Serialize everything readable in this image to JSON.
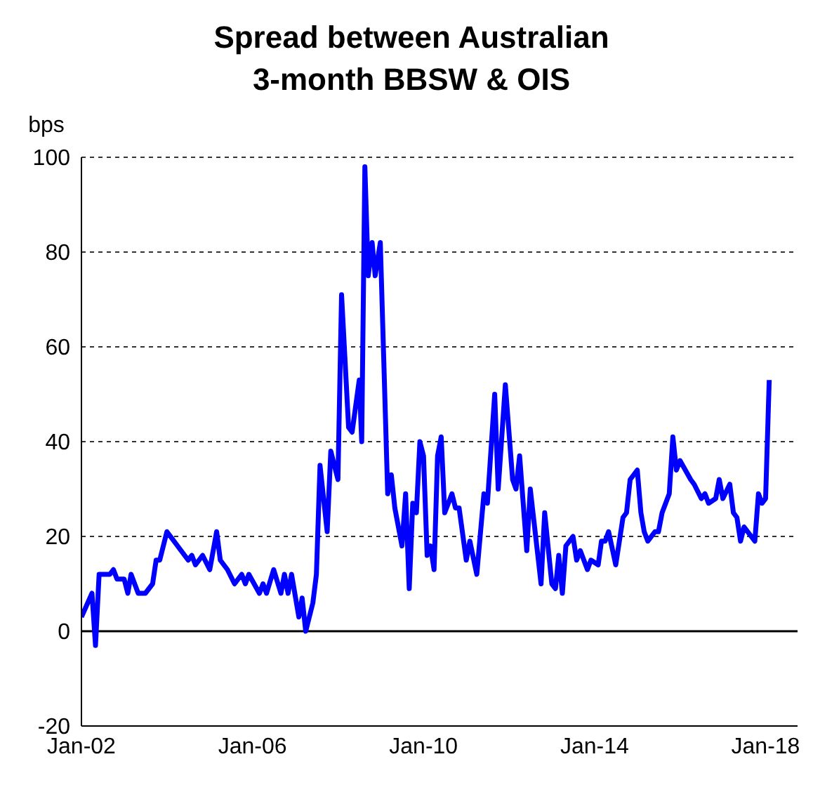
{
  "chart_data": {
    "type": "line",
    "title": "Spread between Australian 3-month BBSW & OIS",
    "ylabel": "bps",
    "xlim": [
      "2002-01",
      "2018-10"
    ],
    "xticks": [
      {
        "value": "2002-01",
        "label": "Jan-02"
      },
      {
        "value": "2006-01",
        "label": "Jan-06"
      },
      {
        "value": "2010-01",
        "label": "Jan-10"
      },
      {
        "value": "2014-01",
        "label": "Jan-14"
      },
      {
        "value": "2018-01",
        "label": "Jan-18"
      }
    ],
    "ylim": [
      -20,
      100
    ],
    "yticks": [
      -20,
      0,
      20,
      40,
      60,
      80,
      100
    ],
    "grid": "y",
    "ref_lines": [
      {
        "axis": "y",
        "value": 0,
        "color": "#000000"
      }
    ],
    "series": [
      {
        "color": "#0000ff",
        "x": [
          "2002-01",
          "2002-04",
          "2002-05",
          "2002-06",
          "2002-09",
          "2002-10",
          "2002-11",
          "2003-01",
          "2003-02",
          "2003-03",
          "2003-05",
          "2003-07",
          "2003-09",
          "2003-10",
          "2003-11",
          "2004-01",
          "2004-04",
          "2004-07",
          "2004-08",
          "2004-09",
          "2004-11",
          "2005-01",
          "2005-03",
          "2005-04",
          "2005-06",
          "2005-08",
          "2005-10",
          "2005-11",
          "2005-12",
          "2006-03",
          "2006-04",
          "2006-05",
          "2006-07",
          "2006-09",
          "2006-10",
          "2006-11",
          "2006-12",
          "2007-02",
          "2007-03",
          "2007-04",
          "2007-06",
          "2007-07",
          "2007-08",
          "2007-10",
          "2007-11",
          "2008-01",
          "2008-02",
          "2008-04",
          "2008-05",
          "2008-07",
          "2008-07-22",
          "2008-08-18",
          "2008-09-16",
          "2008-10-19",
          "2008-11-14",
          "2008-12-28",
          "2009-03",
          "2009-04",
          "2009-05",
          "2009-07",
          "2009-08",
          "2009-09",
          "2009-10",
          "2009-11",
          "2009-12",
          "2010-01",
          "2010-02",
          "2010-03",
          "2010-04",
          "2010-05",
          "2010-06",
          "2010-07",
          "2010-09",
          "2010-10",
          "2010-11",
          "2011-01",
          "2011-02",
          "2011-04",
          "2011-06",
          "2011-07",
          "2011-09",
          "2011-10",
          "2011-12",
          "2012-02",
          "2012-03",
          "2012-04",
          "2012-06",
          "2012-07",
          "2012-10",
          "2012-11",
          "2013-01",
          "2013-02",
          "2013-03",
          "2013-04",
          "2013-05",
          "2013-07",
          "2013-08",
          "2013-09",
          "2013-11",
          "2013-12",
          "2014-02",
          "2014-03",
          "2014-04",
          "2014-05",
          "2014-07",
          "2014-09",
          "2014-10",
          "2014-11",
          "2015-01",
          "2015-02",
          "2015-03",
          "2015-04",
          "2015-06",
          "2015-07",
          "2015-08",
          "2015-10",
          "2015-11",
          "2015-12",
          "2016-01",
          "2016-04",
          "2016-05",
          "2016-07",
          "2016-08",
          "2016-09",
          "2016-11",
          "2016-12",
          "2017-01",
          "2017-03",
          "2017-04",
          "2017-05",
          "2017-06",
          "2017-07",
          "2017-10",
          "2017-11",
          "2017-12",
          "2018-01",
          "2018-02"
        ],
        "values": [
          3,
          8,
          -3,
          12,
          12,
          13,
          11,
          11,
          8,
          12,
          8,
          8,
          10,
          15,
          15,
          21,
          18,
          15,
          16,
          14,
          16,
          13,
          21,
          15,
          13,
          10,
          12,
          10,
          12,
          8,
          10,
          8,
          13,
          8,
          12,
          8,
          12,
          3,
          7,
          0,
          6,
          12,
          35,
          21,
          38,
          32,
          71,
          43,
          42,
          53,
          40,
          98,
          75,
          82,
          75,
          82,
          29,
          33,
          26,
          18,
          29,
          9,
          27,
          25,
          40,
          37,
          16,
          18,
          13,
          37,
          41,
          25,
          29,
          26,
          26,
          15,
          19,
          12,
          29,
          27,
          50,
          30,
          52,
          32,
          30,
          37,
          17,
          30,
          10,
          25,
          10,
          9,
          16,
          8,
          18,
          20,
          15,
          17,
          13,
          15,
          14,
          19,
          19,
          21,
          14,
          24,
          25,
          32,
          34,
          25,
          21,
          19,
          21,
          21,
          25,
          29,
          41,
          34,
          36,
          32,
          31,
          28,
          29,
          27,
          28,
          32,
          28,
          31,
          25,
          24,
          19,
          22,
          19,
          29,
          27,
          28,
          53
        ]
      }
    ]
  }
}
